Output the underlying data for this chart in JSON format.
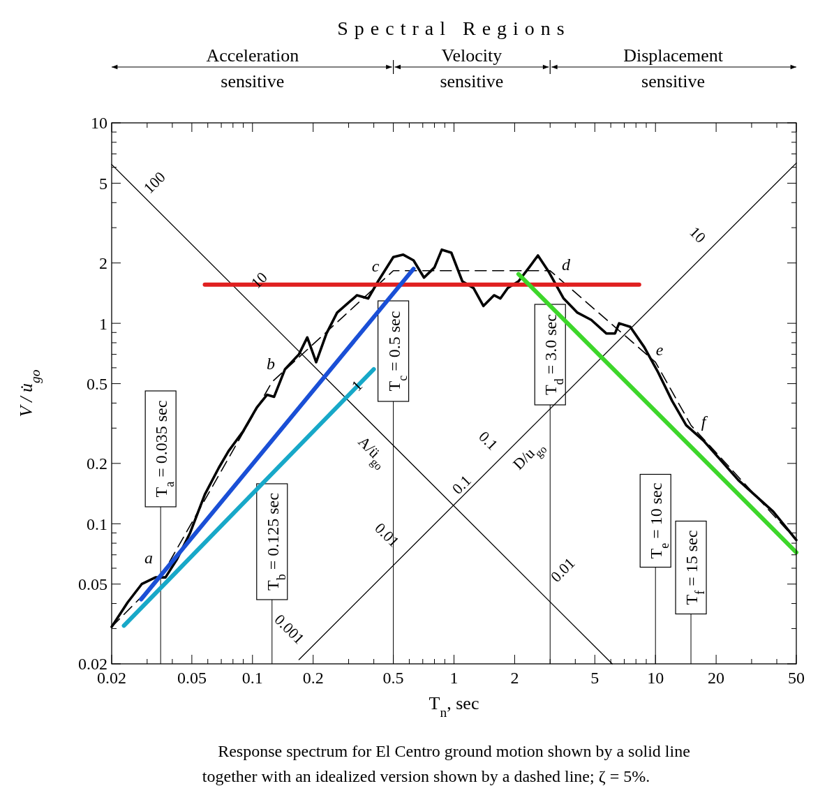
{
  "chart_data": {
    "type": "line",
    "title": "Spectral Regions",
    "xlabel": "T$_{n}$, sec",
    "ylabel": "V / u̇$_{go}$",
    "log": "xy",
    "xlim": [
      0.02,
      50
    ],
    "ylim": [
      0.02,
      10
    ],
    "xticks": [
      0.02,
      {
        "value": 0.03,
        "label": null
      },
      {
        "value": 0.04,
        "label": null
      },
      0.05,
      {
        "value": 0.06,
        "label": null
      },
      {
        "value": 0.07,
        "label": null
      },
      {
        "value": 0.08,
        "label": null
      },
      {
        "value": 0.09,
        "label": null
      },
      0.1,
      0.2,
      {
        "value": 0.3,
        "label": null
      },
      {
        "value": 0.4,
        "label": null
      },
      0.5,
      {
        "value": 0.6,
        "label": null
      },
      {
        "value": 0.7,
        "label": null
      },
      {
        "value": 0.8,
        "label": null
      },
      {
        "value": 0.9,
        "label": null
      },
      1,
      2,
      {
        "value": 3,
        "label": null
      },
      {
        "value": 4,
        "label": null
      },
      5,
      {
        "value": 6,
        "label": null
      },
      {
        "value": 7,
        "label": null
      },
      {
        "value": 8,
        "label": null
      },
      {
        "value": 9,
        "label": null
      },
      10,
      20,
      {
        "value": 30,
        "label": null
      },
      {
        "value": 40,
        "label": null
      },
      50
    ],
    "yticks": [
      0.02,
      {
        "value": 0.03,
        "label": null
      },
      {
        "value": 0.04,
        "label": null
      },
      0.05,
      {
        "value": 0.06,
        "label": null
      },
      {
        "value": 0.07,
        "label": null
      },
      {
        "value": 0.08,
        "label": null
      },
      {
        "value": 0.09,
        "label": null
      },
      0.1,
      0.2,
      {
        "value": 0.3,
        "label": null
      },
      {
        "value": 0.4,
        "label": null
      },
      0.5,
      {
        "value": 0.6,
        "label": null
      },
      {
        "value": 0.7,
        "label": null
      },
      {
        "value": 0.8,
        "label": null
      },
      {
        "value": 0.9,
        "label": null
      },
      1,
      2,
      {
        "value": 3,
        "label": null
      },
      {
        "value": 4,
        "label": null
      },
      5,
      {
        "value": 6,
        "label": null
      },
      {
        "value": 7,
        "label": null
      },
      {
        "value": 8,
        "label": null
      },
      {
        "value": 9,
        "label": null
      },
      10
    ],
    "series": [
      {
        "color": "#000000",
        "line_style": "solid",
        "x": [
          0.02,
          0.024,
          0.0282,
          0.033,
          0.037,
          0.042,
          0.049,
          0.058,
          0.068,
          0.076,
          0.09,
          0.105,
          0.118,
          0.128,
          0.145,
          0.17,
          0.187,
          0.207,
          0.233,
          0.263,
          0.3,
          0.33,
          0.375,
          0.42,
          0.5,
          0.56,
          0.63,
          0.71,
          0.8,
          0.87,
          0.97,
          1.1,
          1.25,
          1.4,
          1.58,
          1.7,
          1.85,
          2.09,
          2.36,
          2.61,
          2.94,
          3.5,
          4.1,
          4.8,
          5.7,
          6.3,
          6.6,
          7.5,
          8.8,
          10.3,
          12.1,
          14.2,
          17.3,
          25.8,
          38.4,
          50
        ],
        "values": [
          0.0306,
          0.0405,
          0.05,
          0.054,
          0.054,
          0.066,
          0.09,
          0.14,
          0.19,
          0.23,
          0.29,
          0.38,
          0.44,
          0.43,
          0.59,
          0.7,
          0.85,
          0.64,
          0.89,
          1.13,
          1.27,
          1.38,
          1.33,
          1.62,
          2.14,
          2.2,
          2.06,
          1.69,
          1.9,
          2.33,
          2.25,
          1.62,
          1.5,
          1.22,
          1.38,
          1.33,
          1.5,
          1.62,
          1.9,
          2.18,
          1.82,
          1.33,
          1.13,
          1.04,
          0.89,
          0.89,
          1.0,
          0.96,
          0.76,
          0.57,
          0.41,
          0.31,
          0.26,
          0.165,
          0.115,
          0.083
        ]
      },
      {
        "color": "#000000",
        "line_style": "dashed",
        "x": [
          0.02,
          0.035,
          0.125,
          0.5,
          3,
          10,
          15,
          50
        ],
        "values": [
          0.0306,
          0.054,
          0.51,
          1.83,
          1.83,
          0.64,
          0.31,
          0.083
        ]
      },
      {
        "color": "#000000",
        "line_style": "solid",
        "x": [
          0.02,
          6.1
        ],
        "values": [
          6.2,
          0.02
        ]
      },
      {
        "color": "#000000",
        "line_style": "solid",
        "x": [
          0.17,
          50
        ],
        "values": [
          0.021,
          6.3
        ]
      },
      {
        "color": "#e02020",
        "line_style": "solid",
        "x": [
          0.058,
          8.3
        ],
        "values": [
          1.56,
          1.56
        ]
      },
      {
        "color": "#1a4fd6",
        "line_style": "solid",
        "x": [
          0.028,
          0.63
        ],
        "values": [
          0.042,
          1.87
        ]
      },
      {
        "color": "#17a8c8",
        "line_style": "solid",
        "x": [
          0.023,
          0.4
        ],
        "values": [
          0.031,
          0.59
        ]
      },
      {
        "color": "#3dd62a",
        "line_style": "solid",
        "x": [
          2.09,
          50
        ],
        "values": [
          1.76,
          0.072
        ]
      }
    ],
    "ref_lines": [
      {
        "axis": "x",
        "value": 0.035,
        "label": "T$_{a}$ = 0.035 sec"
      },
      {
        "axis": "x",
        "value": 0.125,
        "label": "T$_{b}$ = 0.125 sec"
      },
      {
        "axis": "x",
        "value": 0.5,
        "label": "T$_{c}$ = 0.5 sec"
      },
      {
        "axis": "x",
        "value": 3.0,
        "label": "T$_{d}$ = 3.0 sec"
      },
      {
        "axis": "x",
        "value": 10,
        "label": "T$_{e}$ = 10 sec"
      },
      {
        "axis": "x",
        "value": 15,
        "label": "T$_{f}$ = 15 sec"
      }
    ],
    "annotations": [
      "a",
      "b",
      "c",
      "d",
      "e",
      "f",
      "100",
      "10",
      "1",
      "A/ü$_{go}$",
      "0.01",
      "0.001",
      "0.1",
      "0.1",
      "D/u$_{go}$",
      "0.01",
      "10",
      "Acceleration sensitive",
      "Velocity sensitive",
      "Displacement sensitive",
      "Response spectrum for El Centro ground motion shown by a solid line together with an idealized version shown by a dashed line; ζ = 5%."
    ]
  }
}
